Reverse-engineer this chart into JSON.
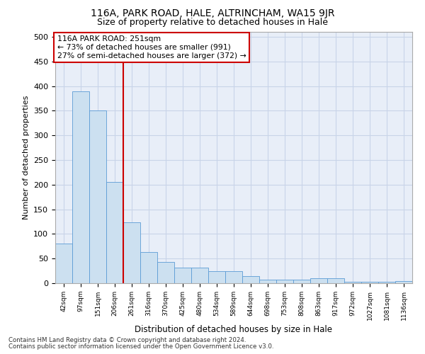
{
  "title_line1": "116A, PARK ROAD, HALE, ALTRINCHAM, WA15 9JR",
  "title_line2": "Size of property relative to detached houses in Hale",
  "xlabel": "Distribution of detached houses by size in Hale",
  "ylabel": "Number of detached properties",
  "categories": [
    "42sqm",
    "97sqm",
    "151sqm",
    "206sqm",
    "261sqm",
    "316sqm",
    "370sqm",
    "425sqm",
    "480sqm",
    "534sqm",
    "589sqm",
    "644sqm",
    "698sqm",
    "753sqm",
    "808sqm",
    "863sqm",
    "917sqm",
    "972sqm",
    "1027sqm",
    "1081sqm",
    "1136sqm"
  ],
  "values": [
    80,
    390,
    350,
    205,
    123,
    63,
    43,
    32,
    32,
    25,
    25,
    15,
    7,
    7,
    7,
    10,
    10,
    3,
    3,
    3,
    5
  ],
  "bar_color": "#cce0f0",
  "bar_edge_color": "#5b9bd5",
  "grid_color": "#c8d4e8",
  "background_color": "#e8eef8",
  "vline_color": "#cc0000",
  "vline_x": 3.5,
  "annotation_text": "116A PARK ROAD: 251sqm\n← 73% of detached houses are smaller (991)\n27% of semi-detached houses are larger (372) →",
  "annotation_box_color": "#ffffff",
  "annotation_box_edge_color": "#cc0000",
  "ylim": [
    0,
    510
  ],
  "yticks": [
    0,
    50,
    100,
    150,
    200,
    250,
    300,
    350,
    400,
    450,
    500
  ],
  "footer_line1": "Contains HM Land Registry data © Crown copyright and database right 2024.",
  "footer_line2": "Contains public sector information licensed under the Open Government Licence v3.0."
}
